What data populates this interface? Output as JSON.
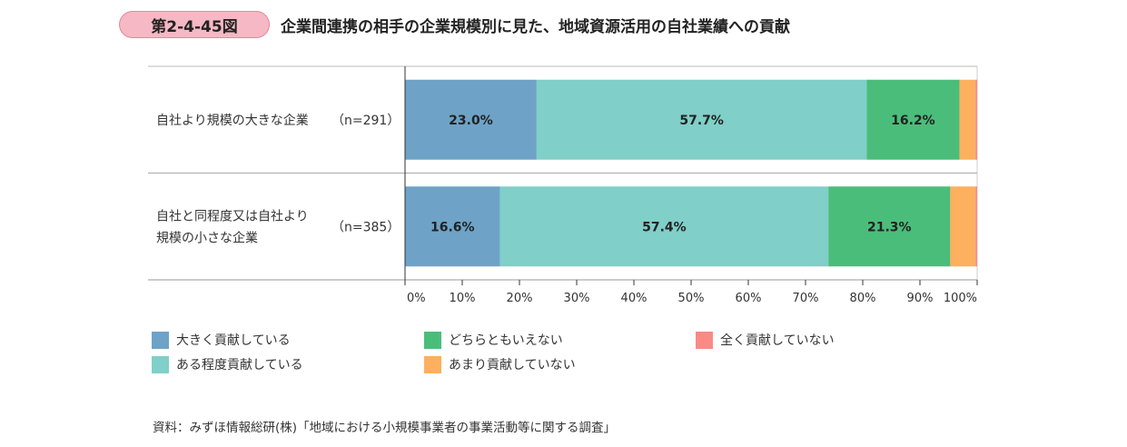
{
  "header": {
    "figure_number": "第2-4-45図",
    "title": "企業間連携の相手の企業規模別に見た、地域資源活用の自社業績への貢献"
  },
  "chart_data": {
    "type": "bar",
    "orientation": "horizontal",
    "stacked": true,
    "percent": true,
    "categories": [
      {
        "lines": [
          "自社より規模の大きな企業"
        ],
        "n": "（n=291）"
      },
      {
        "lines": [
          "自社と同程度又は自社より",
          "規模の小さな企業"
        ],
        "n": "（n=385）"
      }
    ],
    "series": [
      {
        "name": "大きく貢献している",
        "color": "#6ea3c7",
        "values": [
          23.0,
          16.6
        ],
        "labels": [
          "23.0%",
          "16.6%"
        ]
      },
      {
        "name": "ある程度貢献している",
        "color": "#80cfc8",
        "values": [
          57.7,
          57.4
        ],
        "labels": [
          "57.7%",
          "57.4%"
        ]
      },
      {
        "name": "どちらともいえない",
        "color": "#4bbd7b",
        "values": [
          16.2,
          21.3
        ],
        "labels": [
          "16.2%",
          "21.3%"
        ]
      },
      {
        "name": "あまり貢献していない",
        "color": "#fdb05e",
        "values": [
          2.8,
          4.4
        ],
        "labels": [
          "",
          ""
        ]
      },
      {
        "name": "全く貢献していない",
        "color": "#f98a86",
        "values": [
          0.3,
          0.3
        ],
        "labels": [
          "",
          ""
        ]
      }
    ],
    "x_ticks": [
      "0%",
      "10%",
      "20%",
      "30%",
      "40%",
      "50%",
      "60%",
      "70%",
      "80%",
      "90%",
      "100%"
    ],
    "xlim": [
      0,
      100
    ],
    "legend_position": "bottom"
  },
  "notes": {
    "source": "資料：みずほ情報総研(株)「地域における小規模事業者の事業活動等に関する調査」"
  }
}
